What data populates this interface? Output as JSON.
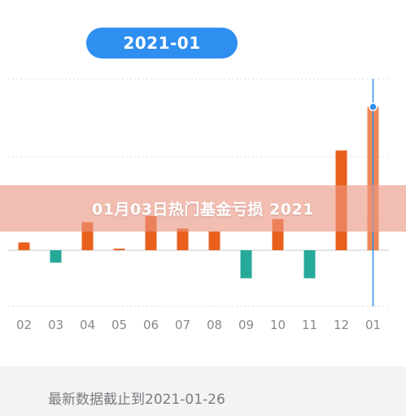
{
  "header": {
    "period_label": "2021-01"
  },
  "overlay": {
    "title": "01月03日热门基金亏损 2021"
  },
  "footer": {
    "note": "最新数据截止到2021-01-26"
  },
  "colors": {
    "accent": "#2f8ff0",
    "positive": "#e8601c",
    "negative": "#27a99a"
  },
  "chart_data": {
    "type": "bar",
    "categories": [
      "02",
      "03",
      "04",
      "05",
      "06",
      "07",
      "08",
      "09",
      "10",
      "11",
      "12",
      "01"
    ],
    "values": [
      0.25,
      -0.4,
      0.9,
      0.05,
      1.1,
      0.7,
      0.6,
      -0.9,
      1.0,
      -0.9,
      3.2,
      4.6
    ],
    "ylim": [
      -1.8,
      5.5
    ],
    "selected_index": 11,
    "grid": true,
    "title": "",
    "xlabel": "",
    "ylabel": ""
  }
}
